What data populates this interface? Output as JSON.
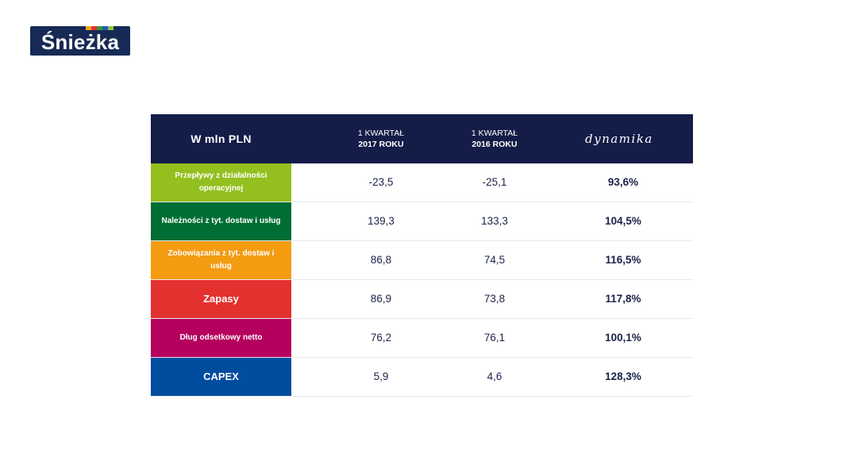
{
  "logo": {
    "text": "Śnieżka",
    "stripe_colors": [
      "#f2a71b",
      "#e5322d",
      "#2f9b3a",
      "#1e5eae",
      "#8dc63f"
    ]
  },
  "table": {
    "header": {
      "unit": "W  mln PLN",
      "col1_line1": "1 KWARTAŁ",
      "col1_line2": "2017 ROKU",
      "col2_line1": "1 KWARTAŁ",
      "col2_line2": "2016 ROKU",
      "dynamics": "dynamika"
    },
    "rows": [
      {
        "label": "Przepływy z działalności operacyjnej",
        "color": "#93c01f",
        "v2017": "-23,5",
        "v2016": "-25,1",
        "dyn": "93,6%"
      },
      {
        "label": "Należności z tyt. dostaw i usług",
        "color": "#006e34",
        "v2017": "139,3",
        "v2016": "133,3",
        "dyn": "104,5%"
      },
      {
        "label": "Zobowiązania z tyt. dostaw i usług",
        "color": "#f39c12",
        "v2017": "86,8",
        "v2016": "74,5",
        "dyn": "116,5%"
      },
      {
        "label": "Zapasy",
        "color": "#e3312f",
        "v2017": "86,9",
        "v2016": "73,8",
        "dyn": "117,8%"
      },
      {
        "label": "Dług odsetkowy netto",
        "color": "#b5005e",
        "v2017": "76,2",
        "v2016": "76,1",
        "dyn": "100,1%"
      },
      {
        "label": "CAPEX",
        "color": "#004d9f",
        "v2017": "5,9",
        "v2016": "4,6",
        "dyn": "128,3%"
      }
    ]
  }
}
